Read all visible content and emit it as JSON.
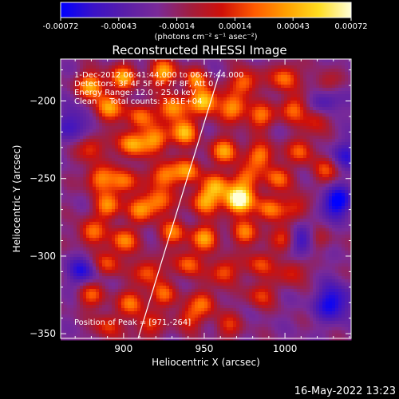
{
  "chart_data": {
    "type": "heatmap",
    "title": "Reconstructed RHESSI Image",
    "xlabel": "Heliocentric X (arcsec)",
    "ylabel": "Heliocentric Y (arcsec)",
    "xlim": [
      861,
      1041
    ],
    "ylim": [
      -353,
      -173
    ],
    "x_ticks": [
      900,
      950,
      1000
    ],
    "y_ticks": [
      -200,
      -250,
      -300,
      -350
    ],
    "colorbar": {
      "range": [
        -0.00072,
        0.00072
      ],
      "ticks": [
        "-0.00072",
        "-0.00043",
        "-0.00014",
        "0.00014",
        "0.00043",
        "0.00072"
      ],
      "units_label": "(photons cm⁻² s⁻¹ asec⁻²)",
      "colors": [
        "#0000ff",
        "#3a12c8",
        "#5a1ea8",
        "#7a2a98",
        "#a01e40",
        "#d01008",
        "#ff5a00",
        "#ffa000",
        "#ffdd20",
        "#ffffd8"
      ]
    },
    "annotations": {
      "time_range": "1-Dec-2012 06:41:44.000 to 06:47:44.000",
      "detectors": "Detectors: 3F 4F 5F 6F 7F 8F, Att 0",
      "energy_range": "Energy Range: 12.0 - 25.0 keV",
      "method": "Clean     Total counts: 3.81E+04",
      "peak": "Position of Peak = [971,-264]"
    },
    "peak": {
      "x": 971,
      "y": -264
    },
    "limb_line": [
      [
        909,
        -353
      ],
      [
        960,
        -180
      ]
    ],
    "blobs": [
      [
        880,
        -190,
        0.6,
        6
      ],
      [
        900,
        -185,
        0.55,
        6
      ],
      [
        925,
        -182,
        0.6,
        6
      ],
      [
        945,
        -186,
        0.45,
        5
      ],
      [
        975,
        -188,
        0.5,
        6
      ],
      [
        1000,
        -185,
        0.5,
        6
      ],
      [
        1025,
        -190,
        0.35,
        6
      ],
      [
        890,
        -205,
        0.6,
        6
      ],
      [
        910,
        -210,
        0.45,
        6
      ],
      [
        930,
        -205,
        0.6,
        6
      ],
      [
        950,
        -200,
        0.75,
        6
      ],
      [
        968,
        -205,
        0.55,
        6
      ],
      [
        985,
        -210,
        0.45,
        6
      ],
      [
        1005,
        -205,
        0.45,
        6
      ],
      [
        1020,
        -212,
        0.4,
        6
      ],
      [
        880,
        -230,
        0.4,
        6
      ],
      [
        905,
        -228,
        0.6,
        6
      ],
      [
        920,
        -225,
        0.55,
        6
      ],
      [
        938,
        -220,
        0.6,
        6
      ],
      [
        963,
        -232,
        0.55,
        6
      ],
      [
        985,
        -235,
        0.5,
        6
      ],
      [
        1010,
        -232,
        0.4,
        6
      ],
      [
        885,
        -250,
        0.5,
        6
      ],
      [
        900,
        -252,
        0.5,
        6
      ],
      [
        925,
        -248,
        0.55,
        6
      ],
      [
        940,
        -245,
        0.5,
        6
      ],
      [
        957,
        -255,
        0.5,
        6
      ],
      [
        975,
        -250,
        0.45,
        6
      ],
      [
        995,
        -250,
        0.45,
        6
      ],
      [
        1025,
        -245,
        0.35,
        6
      ],
      [
        890,
        -268,
        0.5,
        6
      ],
      [
        910,
        -270,
        0.45,
        6
      ],
      [
        922,
        -265,
        0.5,
        6
      ],
      [
        950,
        -265,
        0.55,
        6
      ],
      [
        971,
        -264,
        1.0,
        6
      ],
      [
        990,
        -270,
        0.5,
        6
      ],
      [
        1008,
        -268,
        0.35,
        6
      ],
      [
        880,
        -285,
        0.45,
        6
      ],
      [
        900,
        -290,
        0.5,
        6
      ],
      [
        930,
        -285,
        0.45,
        6
      ],
      [
        950,
        -288,
        0.55,
        6
      ],
      [
        975,
        -285,
        0.45,
        6
      ],
      [
        1000,
        -288,
        0.4,
        6
      ],
      [
        1020,
        -290,
        0.35,
        6
      ],
      [
        890,
        -305,
        0.4,
        6
      ],
      [
        915,
        -310,
        0.45,
        6
      ],
      [
        940,
        -305,
        0.45,
        6
      ],
      [
        962,
        -310,
        0.45,
        6
      ],
      [
        985,
        -305,
        0.4,
        6
      ],
      [
        1005,
        -310,
        0.35,
        6
      ],
      [
        880,
        -325,
        0.4,
        6
      ],
      [
        905,
        -330,
        0.45,
        6
      ],
      [
        925,
        -325,
        0.4,
        6
      ],
      [
        950,
        -330,
        0.4,
        6
      ],
      [
        985,
        -325,
        0.35,
        6
      ],
      [
        890,
        -345,
        0.35,
        6
      ],
      [
        915,
        -345,
        0.35,
        6
      ],
      [
        940,
        -340,
        0.35,
        6
      ],
      [
        965,
        -345,
        0.3,
        6
      ],
      [
        1032,
        -265,
        -0.5,
        7
      ],
      [
        1012,
        -290,
        -0.4,
        8
      ],
      [
        1030,
        -330,
        -0.45,
        8
      ],
      [
        1025,
        -200,
        -0.35,
        8
      ],
      [
        875,
        -310,
        -0.35,
        7
      ],
      [
        870,
        -215,
        -0.3,
        8
      ],
      [
        1038,
        -235,
        -0.3,
        7
      ]
    ],
    "background_level": -0.3,
    "footer": "16-May-2022 13:23"
  }
}
